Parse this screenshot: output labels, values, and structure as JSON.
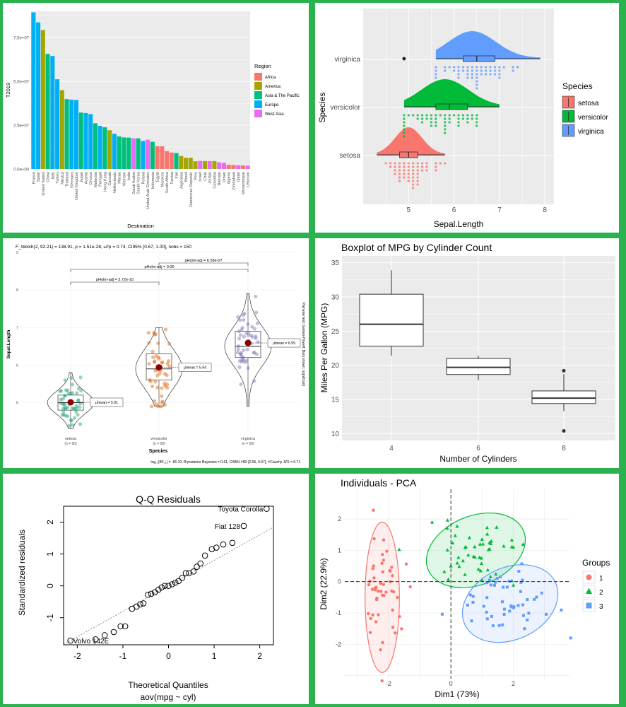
{
  "chart_data": [
    {
      "type": "bar",
      "ylabel": "T2019",
      "xlabel": "Destination",
      "ylim": [
        0,
        90000000
      ],
      "ytick_labels": [
        "0.0e+00",
        "2.5e+07",
        "5.0e+07",
        "7.5e+07"
      ],
      "ytick_values": [
        0,
        25000000,
        50000000,
        75000000
      ],
      "legend_title": "Region",
      "legend": [
        {
          "name": "Africa",
          "color": "#F8766D"
        },
        {
          "name": "America",
          "color": "#A3A500"
        },
        {
          "name": "Asia & The Pacific",
          "color": "#00BF7D"
        },
        {
          "name": "Europe",
          "color": "#00B0F6"
        },
        {
          "name": "West Asia",
          "color": "#E76BF3"
        }
      ],
      "categories": [
        "France",
        "Spain",
        "United States",
        "China",
        "Italy",
        "Turkey",
        "Mexico",
        "Thailand",
        "Germany",
        "United Kingdom",
        "Japan",
        "Austria",
        "Greece",
        "Malaysia",
        "Portugal",
        "Hong Kong",
        "Canada",
        "Netherlands",
        "Macau",
        "Vietnam",
        "India",
        "Saudi Arabia",
        "South Korea",
        "Poland",
        "United Arab Emirates",
        "Indonesia",
        "Egypt",
        "Morocco",
        "South Africa",
        "Tunisia",
        "Iran",
        "Argentina",
        "Brazil",
        "Dominican Republic",
        "Peru",
        "Israel",
        "Chile",
        "Jordan",
        "Colombia",
        "Bahrain",
        "Oman",
        "Algeria",
        "Zimbabwe",
        "Qatar",
        "Mozambique",
        "Lebanon"
      ],
      "regions": [
        "Europe",
        "Europe",
        "America",
        "Asia & The Pacific",
        "Europe",
        "Europe",
        "America",
        "Asia & The Pacific",
        "Europe",
        "Europe",
        "Asia & The Pacific",
        "Europe",
        "Europe",
        "Asia & The Pacific",
        "Europe",
        "Asia & The Pacific",
        "America",
        "Europe",
        "Asia & The Pacific",
        "Asia & The Pacific",
        "Asia & The Pacific",
        "West Asia",
        "Asia & The Pacific",
        "Europe",
        "West Asia",
        "Asia & The Pacific",
        "Africa",
        "Africa",
        "Africa",
        "Africa",
        "Asia & The Pacific",
        "America",
        "America",
        "America",
        "America",
        "West Asia",
        "America",
        "West Asia",
        "America",
        "West Asia",
        "West Asia",
        "Africa",
        "Africa",
        "West Asia",
        "Africa",
        "West Asia"
      ],
      "values": [
        89400000,
        83700000,
        79300000,
        65700000,
        64500000,
        51200000,
        45000000,
        39900000,
        39600000,
        39400000,
        32200000,
        31900000,
        31300000,
        26100000,
        24600000,
        23800000,
        22100000,
        20100000,
        18600000,
        18000000,
        17900000,
        17500000,
        17500000,
        16000000,
        16700000,
        15500000,
        13000000,
        13000000,
        10200000,
        9400000,
        9100000,
        7400000,
        6400000,
        6400000,
        4400000,
        4600000,
        4500000,
        4500000,
        4500000,
        3800000,
        3500000,
        2400000,
        2300000,
        2100000,
        2000000,
        1900000
      ]
    },
    {
      "type": "raincloud",
      "xlabel": "Sepal.Length",
      "ylabel": "Species",
      "xlim": [
        4.0,
        8.2
      ],
      "xticks": [
        5,
        6,
        7,
        8
      ],
      "legend_title": "Species",
      "series": [
        {
          "name": "setosa",
          "color": "#F8766D",
          "min": 4.3,
          "q1": 4.8,
          "median": 5.0,
          "q3": 5.2,
          "max": 5.8,
          "density_peak": 5.0
        },
        {
          "name": "versicolor",
          "color": "#00BA38",
          "min": 4.9,
          "q1": 5.6,
          "median": 5.9,
          "q3": 6.3,
          "max": 7.0,
          "density_peak": 5.8
        },
        {
          "name": "virginica",
          "color": "#619CFF",
          "min": 5.6,
          "q1": 6.2,
          "median": 6.5,
          "q3": 6.9,
          "max": 7.9,
          "outliers": [
            4.9
          ],
          "density_peak": 6.4
        }
      ]
    },
    {
      "type": "violin-box",
      "title": "F_Welch(2, 92.21) = 138.91, p = 1.51e-28, ω̂²p = 0.74, CI95% [0.67, 1.00], nobs = 150",
      "ylabel": "Sepal.Length",
      "xlabel": "Species",
      "ylim": [
        4.2,
        9.0
      ],
      "yticks": [
        5,
        6,
        7,
        8,
        9
      ],
      "groups": [
        {
          "name": "setosa",
          "n": "(n = 50)",
          "mean_label": "μ̂mean = 5.01",
          "mean": 5.01,
          "q1": 4.8,
          "median": 5.0,
          "q3": 5.2,
          "min": 4.3,
          "max": 5.8,
          "color": "#1b9e77"
        },
        {
          "name": "versicolor",
          "n": "(n = 50)",
          "mean_label": "μ̂mean = 5.94",
          "mean": 5.94,
          "q1": 5.6,
          "median": 5.9,
          "q3": 6.3,
          "min": 4.9,
          "max": 7.0,
          "color": "#d95f02"
        },
        {
          "name": "virginica",
          "n": "(n = 50)",
          "mean_label": "μ̂mean = 6.59",
          "mean": 6.59,
          "q1": 6.2,
          "median": 6.5,
          "q3": 6.9,
          "min": 4.9,
          "max": 7.9,
          "color": "#7570b3"
        }
      ],
      "comparisons": [
        {
          "label": "pHolm-adj = 3.72e-10",
          "from": 0,
          "to": 1
        },
        {
          "label": "pHolm-adj = 0.00",
          "from": 0,
          "to": 2
        },
        {
          "label": "pHolm-adj = 6.58e-07",
          "from": 1,
          "to": 2
        }
      ],
      "side_note": "Pairwise test: Games-Howell; Bars shown: significant",
      "caption": "log₁₀(BF₀₁) = -65.10, R²posterior Bayesian = 0.61, CI95% HDI [0.55, 0.67], r²Cauchy JZS = 0.71"
    },
    {
      "type": "boxplot",
      "title": "Boxplot of MPG by Cylinder Count",
      "xlabel": "Number of Cylinders",
      "ylabel": "Miles Per Gallon (MPG)",
      "ylim": [
        9,
        36
      ],
      "yticks": [
        10,
        15,
        20,
        25,
        30,
        35
      ],
      "categories": [
        "4",
        "6",
        "8"
      ],
      "boxes": [
        {
          "min": 21.4,
          "q1": 22.8,
          "median": 26.0,
          "q3": 30.4,
          "max": 33.9,
          "outliers": []
        },
        {
          "min": 17.8,
          "q1": 18.65,
          "median": 19.7,
          "q3": 21.0,
          "max": 21.4,
          "outliers": []
        },
        {
          "min": 13.3,
          "q1": 14.4,
          "median": 15.2,
          "q3": 16.25,
          "max": 18.7,
          "outliers": [
            19.2,
            10.4
          ]
        }
      ]
    },
    {
      "type": "scatter",
      "title": "Q-Q Residuals",
      "xlabel": "Theoretical Quantiles",
      "subtitle": "aov(mpg ~ cyl)",
      "ylabel": "Standardized residuals",
      "xlim": [
        -2.3,
        2.3
      ],
      "ylim": [
        -1.85,
        2.5
      ],
      "xticks": [
        -2,
        -1,
        0,
        1,
        2
      ],
      "yticks": [
        -1,
        0,
        1,
        2
      ],
      "x": [
        -2.15,
        -1.6,
        -1.4,
        -1.2,
        -1.05,
        -0.95,
        -0.8,
        -0.7,
        -0.62,
        -0.55,
        -0.45,
        -0.38,
        -0.3,
        -0.22,
        -0.15,
        -0.08,
        0.0,
        0.08,
        0.15,
        0.22,
        0.3,
        0.38,
        0.45,
        0.55,
        0.62,
        0.7,
        0.8,
        0.95,
        1.05,
        1.2,
        1.4,
        1.65,
        2.15
      ],
      "y": [
        -1.72,
        -1.68,
        -1.55,
        -1.45,
        -1.27,
        -1.27,
        -0.72,
        -0.65,
        -0.58,
        -0.55,
        -0.28,
        -0.25,
        -0.2,
        -0.12,
        -0.05,
        0.0,
        0.0,
        0.05,
        0.1,
        0.15,
        0.25,
        0.4,
        0.4,
        0.45,
        0.6,
        0.7,
        0.95,
        1.15,
        1.2,
        1.3,
        1.35,
        1.88,
        2.42
      ],
      "point_labels": [
        {
          "index": 0,
          "text": "Volvo 142E"
        },
        {
          "index": 31,
          "text": "Fiat 128"
        },
        {
          "index": 32,
          "text": "Toyota Corolla"
        }
      ]
    },
    {
      "type": "scatter",
      "title": "Individuals - PCA",
      "xlabel": "Dim1 (73%)",
      "ylabel": "Dim2 (22.9%)",
      "xlim": [
        -3.4,
        3.8
      ],
      "ylim": [
        -3.1,
        2.95
      ],
      "xticks": [
        -2,
        0,
        2
      ],
      "yticks": [
        -2,
        -1,
        0,
        1,
        2
      ],
      "legend_title": "Groups",
      "series": [
        {
          "name": "1",
          "color": "#F8766D",
          "shape": "circle",
          "center": [
            -2.2,
            -0.5
          ]
        },
        {
          "name": "2",
          "color": "#00BA38",
          "shape": "triangle",
          "center": [
            0.8,
            1.0
          ]
        },
        {
          "name": "3",
          "color": "#619CFF",
          "shape": "square",
          "center": [
            1.9,
            -0.7
          ]
        }
      ]
    }
  ]
}
